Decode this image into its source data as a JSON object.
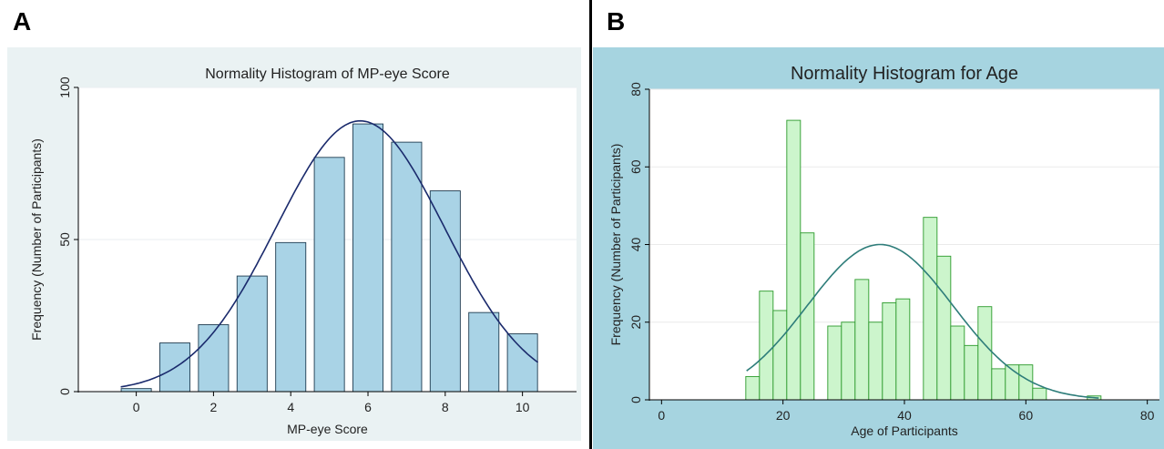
{
  "panels": {
    "a_letter": "A",
    "b_letter": "B"
  },
  "chart_data": [
    {
      "type": "bar",
      "title": "Normality Histogram of MP-eye Score",
      "xlabel": "MP-eye Score",
      "ylabel": "Frequency (Number of Participants)",
      "x": [
        0,
        1,
        2,
        3,
        4,
        5,
        6,
        7,
        8,
        9,
        10
      ],
      "values": [
        1,
        16,
        22,
        38,
        49,
        77,
        88,
        82,
        66,
        26,
        19
      ],
      "bin_width": 0.78,
      "xlim": [
        -1.5,
        11.4
      ],
      "ylim": [
        0,
        100
      ],
      "xticks": [
        0,
        2,
        4,
        6,
        8,
        10
      ],
      "yticks": [
        0,
        50,
        100
      ],
      "normal_curve": {
        "mean": 5.8,
        "sd": 2.18,
        "peak": 89,
        "x_range": [
          -0.4,
          10.4
        ]
      },
      "grid": true,
      "colors": {
        "outer_bg": "#eaf2f3",
        "plot_bg": "#ffffff",
        "bar_fill": "#a9d3e6",
        "bar_stroke": "#1e3b50",
        "curve": "#1a2a6c",
        "grid": "#e8eef0",
        "text": "#222222"
      }
    },
    {
      "type": "bar",
      "title": "Normality Histogram for Age",
      "xlabel": "Age of Participants",
      "ylabel": "Frequency (Number of Participants)",
      "x": [
        15,
        17.25,
        19.5,
        21.75,
        24,
        26.25,
        28.5,
        30.75,
        33,
        35.25,
        37.5,
        39.75,
        42,
        44.25,
        46.5,
        48.75,
        51,
        53.25,
        55.5,
        57.75,
        60,
        62.25,
        64.5,
        66.75,
        69,
        71.25
      ],
      "values": [
        6,
        28,
        23,
        72,
        43,
        0,
        19,
        20,
        31,
        20,
        25,
        26,
        0,
        47,
        37,
        19,
        14,
        24,
        8,
        9,
        9,
        3,
        0,
        0,
        0,
        1
      ],
      "bin_width": 2.25,
      "xlim": [
        -2,
        82
      ],
      "ylim": [
        0,
        80
      ],
      "xticks": [
        0,
        20,
        40,
        60,
        80
      ],
      "yticks": [
        0,
        20,
        40,
        60,
        80
      ],
      "normal_curve": {
        "mean": 36,
        "sd": 12,
        "peak": 40,
        "x_range": [
          14,
          72
        ]
      },
      "grid": true,
      "colors": {
        "outer_bg": "#a6d4e0",
        "plot_bg": "#ffffff",
        "bar_fill": "#ccf5cc",
        "bar_stroke": "#2b9a2b",
        "curve": "#2e7d7a",
        "grid": "#eaeaea",
        "text": "#222222"
      }
    }
  ]
}
